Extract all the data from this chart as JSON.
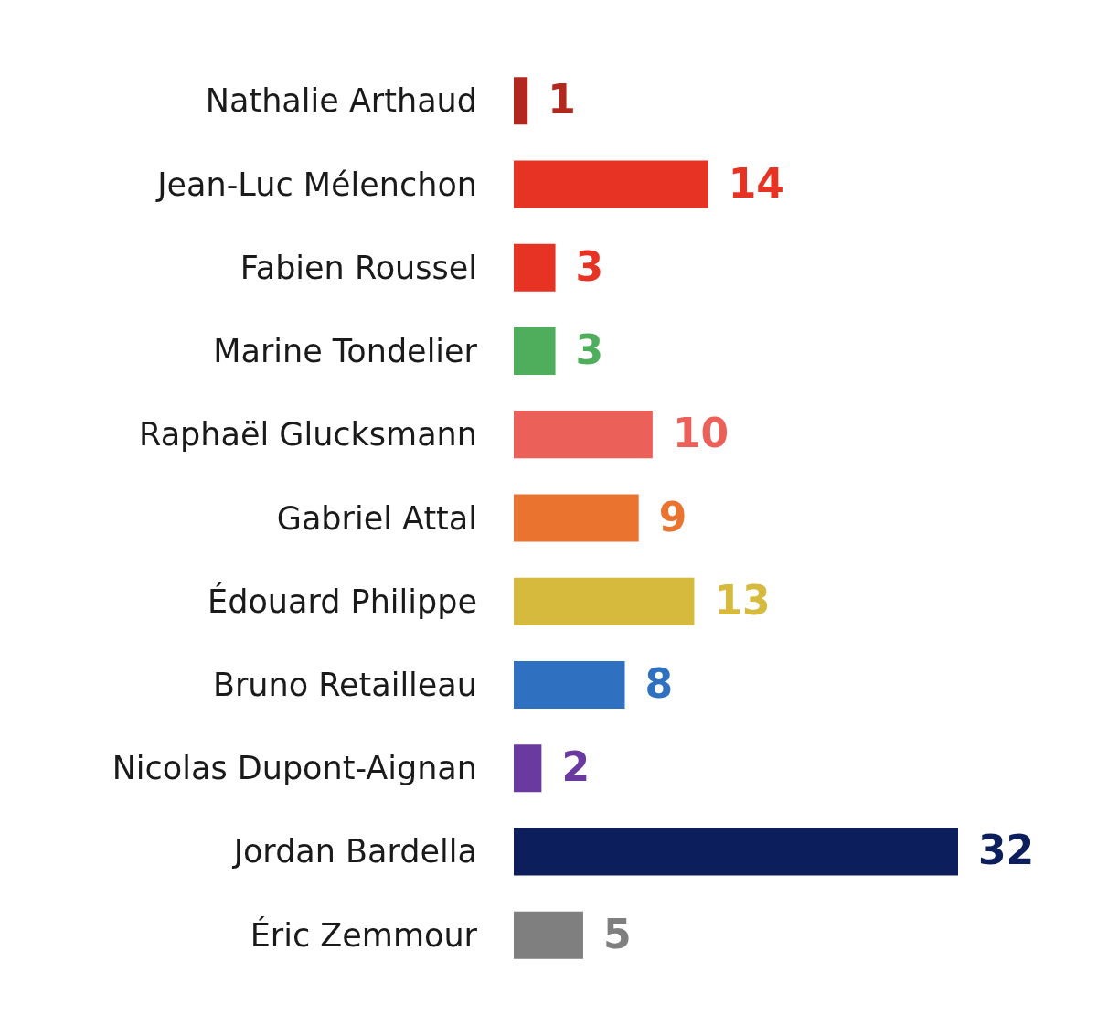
{
  "chart_data": {
    "type": "bar",
    "orientation": "horizontal",
    "data_labels": true,
    "categories": [
      "Nathalie Arthaud",
      "Jean-Luc Mélenchon",
      "Fabien Roussel",
      "Marine Tondelier",
      "Raphaël Glucksmann",
      "Gabriel Attal",
      "Édouard Philippe",
      "Bruno Retailleau",
      "Nicolas Dupont-Aignan",
      "Jordan Bardella",
      "Éric Zemmour"
    ],
    "values": [
      1,
      14,
      3,
      3,
      10,
      9,
      13,
      8,
      2,
      32,
      5
    ],
    "colors": [
      "#b3281e",
      "#e63323",
      "#e63323",
      "#4fae5b",
      "#ec605a",
      "#eb7330",
      "#d5ba3d",
      "#3070c0",
      "#6a3aa0",
      "#0c1f5c",
      "#7f7f7f"
    ]
  }
}
